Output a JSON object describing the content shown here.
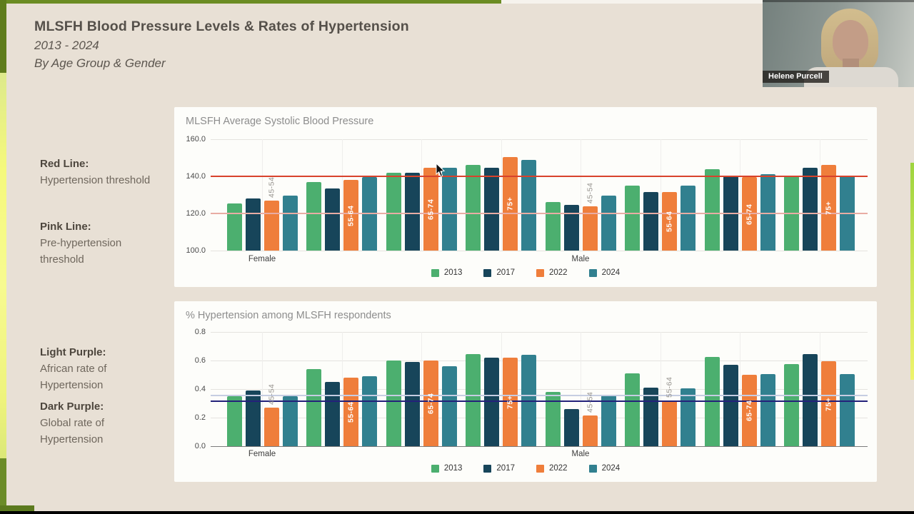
{
  "slide": {
    "title": "MLSFH Blood Pressure Levels & Rates of Hypertension",
    "years": "2013 - 2024",
    "subtitle": "By Age Group & Gender"
  },
  "sidebar": {
    "notes": [
      {
        "label": "Red Line:",
        "text": "Hypertension threshold"
      },
      {
        "label": "Pink Line:",
        "text": "Pre-hypertension threshold"
      },
      {
        "label": "Light Purple:",
        "text": "African rate of Hypertension"
      },
      {
        "label": "Dark Purple:",
        "text": "Global rate of Hypertension"
      }
    ]
  },
  "webcam": {
    "name": "Helene Purcell"
  },
  "colors": {
    "slide_background": "#e8e0d5",
    "panel_background": "#fdfdfa",
    "accent_green": "#6b8c23",
    "accent_yellow": "#f5f97c",
    "series_2013": "#4caf6f",
    "series_2017": "#17455a",
    "series_2022": "#ef7e3b",
    "series_2024": "#31808f",
    "red_line": "#d8422c",
    "pink_line": "#e8aca4",
    "light_purple_line": "#c6cde2",
    "dark_purple_line": "#23217a"
  },
  "chart_data": [
    {
      "type": "bar",
      "title": "MLSFH Average Systolic Blood Pressure",
      "categories": [
        "45-54",
        "55-64",
        "65-74",
        "75+",
        "45-54",
        "55-64",
        "65-74",
        "75+"
      ],
      "group_sections": [
        "Female",
        "Male"
      ],
      "ylim": [
        100,
        160
      ],
      "ytick_step": 20,
      "grid": true,
      "legend_position": "bottom",
      "series": [
        {
          "name": "2013",
          "color": "#4caf6f",
          "values": [
            125.5,
            137,
            142,
            146,
            126,
            135,
            144,
            140
          ]
        },
        {
          "name": "2017",
          "color": "#17455a",
          "values": [
            128,
            133.5,
            142,
            144.5,
            124.5,
            131.5,
            140,
            144.5
          ]
        },
        {
          "name": "2022",
          "color": "#ef7e3b",
          "values": [
            127,
            138,
            144.5,
            150.5,
            124,
            131.5,
            139.5,
            146
          ]
        },
        {
          "name": "2024",
          "color": "#31808f",
          "values": [
            129.5,
            139.5,
            144.5,
            149,
            129.5,
            135,
            141,
            140.5
          ]
        }
      ],
      "ref_lines": [
        {
          "label": "Hypertension threshold",
          "value": 140,
          "color": "#d8422c"
        },
        {
          "label": "Pre-hypertension threshold",
          "value": 120,
          "color": "#e8aca4"
        }
      ],
      "age_label_outside": [
        true,
        false,
        false,
        false,
        true,
        false,
        false,
        false
      ]
    },
    {
      "type": "bar",
      "title": "% Hypertension among MLSFH respondents",
      "categories": [
        "45-54",
        "55-64",
        "65-74",
        "75+",
        "45-54",
        "55-64",
        "65-74",
        "75+"
      ],
      "group_sections": [
        "Female",
        "Male"
      ],
      "ylim": [
        0,
        0.8
      ],
      "ytick_step": 0.2,
      "grid": true,
      "legend_position": "bottom",
      "series": [
        {
          "name": "2013",
          "color": "#4caf6f",
          "values": [
            0.35,
            0.54,
            0.6,
            0.645,
            0.38,
            0.51,
            0.625,
            0.575
          ]
        },
        {
          "name": "2017",
          "color": "#17455a",
          "values": [
            0.39,
            0.45,
            0.59,
            0.62,
            0.26,
            0.41,
            0.57,
            0.645
          ]
        },
        {
          "name": "2022",
          "color": "#ef7e3b",
          "values": [
            0.27,
            0.48,
            0.6,
            0.62,
            0.215,
            0.32,
            0.5,
            0.595
          ]
        },
        {
          "name": "2024",
          "color": "#31808f",
          "values": [
            0.35,
            0.49,
            0.56,
            0.64,
            0.355,
            0.405,
            0.505,
            0.505
          ]
        }
      ],
      "ref_lines": [
        {
          "label": "African rate of Hypertension",
          "value": 0.355,
          "color": "#c6cde2"
        },
        {
          "label": "Global rate of Hypertension",
          "value": 0.315,
          "color": "#23217a"
        }
      ],
      "age_label_outside": [
        true,
        false,
        false,
        false,
        true,
        true,
        false,
        false
      ]
    }
  ]
}
